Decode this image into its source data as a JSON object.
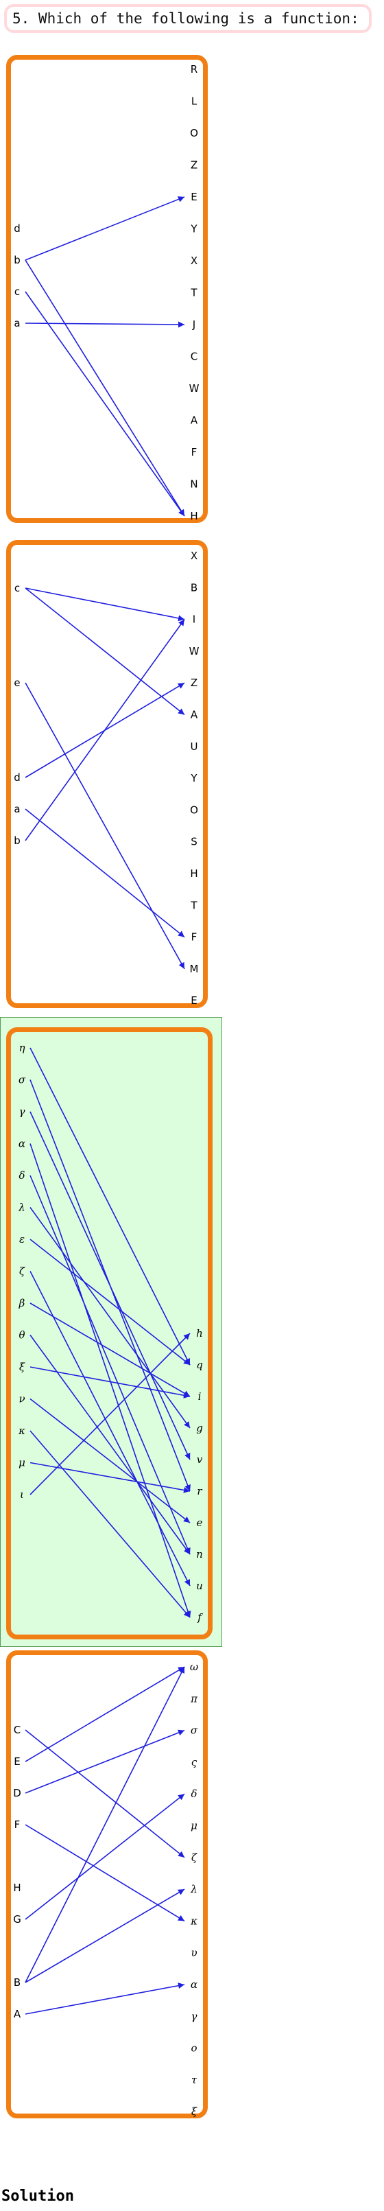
{
  "question": "5. Which of the following is a function:",
  "solution_label": "Solution",
  "colors": {
    "frame": "#f27f13",
    "arrow": "#1f1fe0",
    "highlight_bg": "#ddfedd",
    "question_border": "#ffd9dc"
  },
  "diagrams": [
    {
      "name": "diagram-1",
      "highlighted": false,
      "domain": [
        "d",
        "b",
        "c",
        "a"
      ],
      "codomain": [
        "R",
        "L",
        "O",
        "Z",
        "E",
        "Y",
        "X",
        "T",
        "J",
        "C",
        "W",
        "A",
        "F",
        "N",
        "H"
      ],
      "mappings": [
        [
          "b",
          "E"
        ],
        [
          "b",
          "H"
        ],
        [
          "c",
          "H"
        ],
        [
          "a",
          "J"
        ]
      ]
    },
    {
      "name": "diagram-2",
      "highlighted": false,
      "domain": [
        "c",
        "e",
        "d",
        "a",
        "b"
      ],
      "codomain": [
        "X",
        "B",
        "I",
        "W",
        "Z",
        "A",
        "U",
        "Y",
        "O",
        "S",
        "H",
        "T",
        "F",
        "M",
        "E"
      ],
      "mappings": [
        [
          "c",
          "I"
        ],
        [
          "c",
          "A"
        ],
        [
          "e",
          "M"
        ],
        [
          "d",
          "Z"
        ],
        [
          "a",
          "F"
        ],
        [
          "b",
          "I"
        ]
      ]
    },
    {
      "name": "diagram-3",
      "highlighted": true,
      "domain": [
        "η",
        "σ",
        "γ",
        "α",
        "δ",
        "λ",
        "ε",
        "ζ",
        "β",
        "θ",
        "ξ",
        "ν",
        "κ",
        "μ",
        "ι"
      ],
      "codomain": [
        "h",
        "q",
        "i",
        "g",
        "v",
        "r",
        "e",
        "n",
        "u",
        "f"
      ],
      "mappings": [
        [
          "η",
          "q"
        ],
        [
          "σ",
          "r"
        ],
        [
          "γ",
          "v"
        ],
        [
          "α",
          "f"
        ],
        [
          "δ",
          "n"
        ],
        [
          "λ",
          "g"
        ],
        [
          "ε",
          "q"
        ],
        [
          "ζ",
          "u"
        ],
        [
          "β",
          "i"
        ],
        [
          "θ",
          "n"
        ],
        [
          "ξ",
          "i"
        ],
        [
          "ν",
          "e"
        ],
        [
          "κ",
          "f"
        ],
        [
          "μ",
          "r"
        ],
        [
          "ι",
          "h"
        ]
      ]
    },
    {
      "name": "diagram-4",
      "highlighted": false,
      "domain": [
        "C",
        "E",
        "D",
        "F",
        "H",
        "G",
        "B",
        "A"
      ],
      "codomain": [
        "ω",
        "π",
        "σ",
        "ς",
        "δ",
        "μ",
        "ζ",
        "λ",
        "κ",
        "υ",
        "α",
        "γ",
        "ο",
        "τ",
        "ξ"
      ],
      "mappings": [
        [
          "C",
          "ζ"
        ],
        [
          "E",
          "ω"
        ],
        [
          "D",
          "σ"
        ],
        [
          "F",
          "κ"
        ],
        [
          "G",
          "δ"
        ],
        [
          "B",
          "ω"
        ],
        [
          "B",
          "λ"
        ],
        [
          "A",
          "α"
        ]
      ]
    }
  ]
}
